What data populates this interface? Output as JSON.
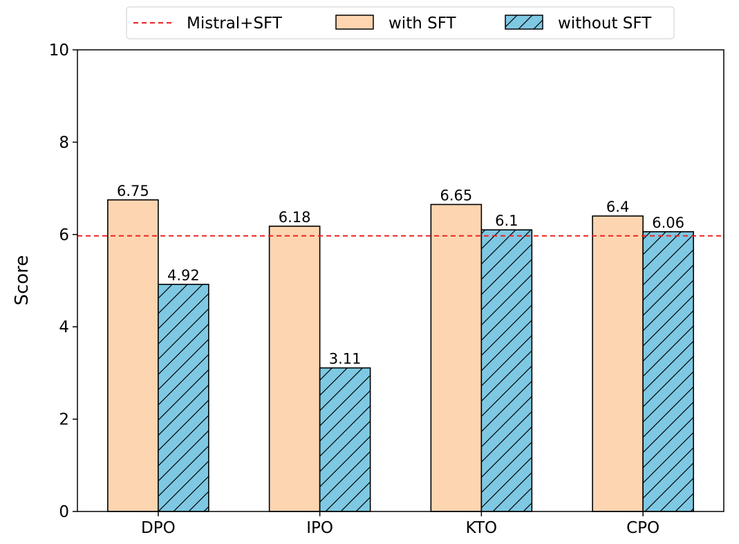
{
  "chart_data": {
    "type": "bar",
    "categories": [
      "DPO",
      "IPO",
      "KTO",
      "CPO"
    ],
    "series": [
      {
        "name": "with SFT",
        "values": [
          6.75,
          6.18,
          6.65,
          6.4
        ],
        "labels": [
          "6.75",
          "6.18",
          "6.65",
          "6.4"
        ],
        "color": "#FDD5B1",
        "hatch": false
      },
      {
        "name": "without SFT",
        "values": [
          4.92,
          3.11,
          6.1,
          6.06
        ],
        "labels": [
          "4.92",
          "3.11",
          "6.1",
          "6.06"
        ],
        "color": "#7EC8E3",
        "hatch": true
      }
    ],
    "reference_line": {
      "name": "Mistral+SFT",
      "value": 5.97,
      "color": "#EE2222",
      "style": "dashed"
    },
    "xlabel": "",
    "ylabel": "Score",
    "ylim": [
      0,
      10
    ],
    "yticks": [
      "0",
      "2",
      "4",
      "6",
      "8",
      "10"
    ],
    "grid": false,
    "legend_position": "top-center"
  }
}
